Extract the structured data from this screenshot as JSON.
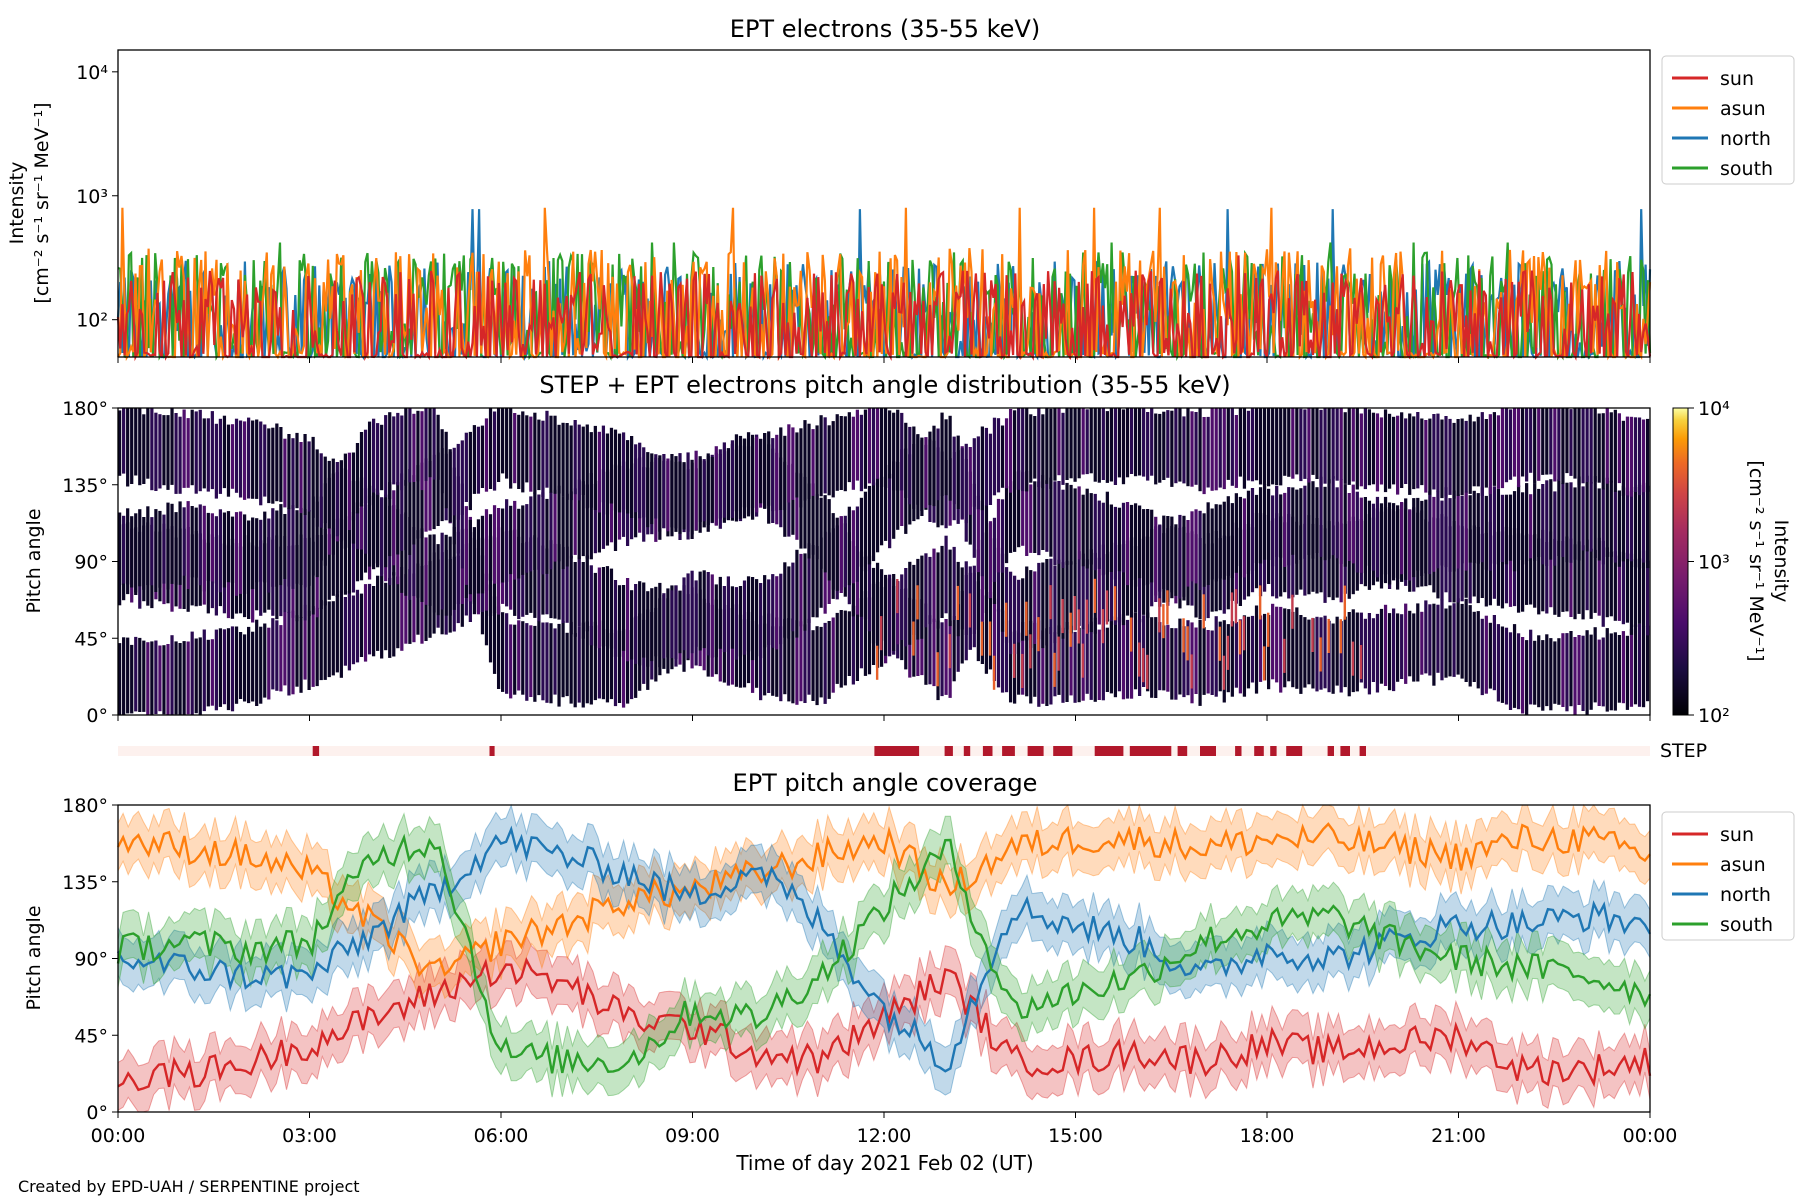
{
  "footer": "Created by EPD-UAH / SERPENTINE project",
  "xlabel": "Time of day 2021 Feb 02 (UT)",
  "xticks": [
    "00:00",
    "03:00",
    "06:00",
    "09:00",
    "12:00",
    "15:00",
    "18:00",
    "21:00",
    "00:00"
  ],
  "chart_data": [
    {
      "type": "line",
      "title": "EPT electrons (35-55 keV)",
      "ylabel": "Intensity",
      "yunit": "[cm⁻² s⁻¹ sr⁻¹ MeV⁻¹]",
      "yscale": "log",
      "ylim": [
        50,
        15000
      ],
      "yticks": [
        {
          "value": 100,
          "label": "10²"
        },
        {
          "value": 1000,
          "label": "10³"
        },
        {
          "value": 10000,
          "label": "10⁴"
        }
      ],
      "xlim_hours": [
        0,
        24
      ],
      "legend": "outside-right",
      "series": [
        {
          "name": "sun",
          "color": "#d62728",
          "typical": [
            50,
            250
          ],
          "peak": 330
        },
        {
          "name": "asun",
          "color": "#ff7f0e",
          "typical": [
            50,
            380
          ],
          "peak": 800
        },
        {
          "name": "north",
          "color": "#1f77b4",
          "typical": [
            50,
            300
          ],
          "peak": 780
        },
        {
          "name": "south",
          "color": "#2ca02c",
          "typical": [
            50,
            350
          ],
          "peak": 420
        }
      ]
    },
    {
      "type": "heatmap",
      "title": "STEP + EPT electrons pitch angle distribution (35-55 keV)",
      "ylabel": "Pitch angle",
      "yticks": [
        "0°",
        "45°",
        "90°",
        "135°",
        "180°"
      ],
      "ylim": [
        0,
        180
      ],
      "colorbar": {
        "label": "Intensity",
        "unit": "[cm⁻² s⁻¹ sr⁻¹ MeV⁻¹]",
        "scale": "log",
        "range": [
          100,
          10000
        ],
        "ticks": [
          "10²",
          "10³",
          "10⁴"
        ],
        "colormap": "inferno"
      }
    },
    {
      "type": "bar",
      "label": "STEP",
      "segments_hours": [
        [
          3.05,
          3.15
        ],
        [
          5.82,
          5.9
        ],
        [
          11.85,
          12.55
        ],
        [
          12.95,
          13.08
        ],
        [
          13.25,
          13.35
        ],
        [
          13.55,
          13.7
        ],
        [
          13.85,
          14.05
        ],
        [
          14.25,
          14.5
        ],
        [
          14.65,
          14.95
        ],
        [
          15.3,
          15.75
        ],
        [
          15.85,
          16.5
        ],
        [
          16.6,
          16.75
        ],
        [
          16.95,
          17.2
        ],
        [
          17.5,
          17.6
        ],
        [
          17.8,
          17.95
        ],
        [
          18.05,
          18.15
        ],
        [
          18.3,
          18.55
        ],
        [
          18.95,
          19.05
        ],
        [
          19.15,
          19.3
        ],
        [
          19.45,
          19.55
        ]
      ],
      "color": "#b2182b",
      "background": "#fdf1ee"
    },
    {
      "type": "line",
      "title": "EPT pitch angle coverage",
      "ylabel": "Pitch angle",
      "yticks": [
        "0°",
        "45°",
        "90°",
        "135°",
        "180°"
      ],
      "ylim": [
        0,
        180
      ],
      "xlim_hours": [
        0,
        24
      ],
      "legend": "outside-right",
      "x_hours": [
        0,
        1,
        2,
        3,
        4,
        5,
        6,
        7,
        8,
        9,
        10,
        11,
        12,
        13,
        14,
        15,
        16,
        17,
        18,
        19,
        20,
        21,
        22,
        23,
        24
      ],
      "series": [
        {
          "name": "sun",
          "color": "#d62728",
          "values": [
            20,
            22,
            28,
            40,
            55,
            70,
            85,
            75,
            55,
            50,
            35,
            30,
            55,
            80,
            30,
            30,
            35,
            30,
            40,
            35,
            40,
            45,
            25,
            25,
            30
          ]
        },
        {
          "name": "asun",
          "color": "#ff7f0e",
          "values": [
            160,
            155,
            150,
            140,
            110,
            80,
            100,
            110,
            125,
            130,
            140,
            150,
            160,
            130,
            155,
            160,
            160,
            155,
            160,
            160,
            155,
            150,
            160,
            160,
            150
          ]
        },
        {
          "name": "north",
          "color": "#1f77b4",
          "values": [
            90,
            85,
            80,
            80,
            105,
            130,
            160,
            150,
            140,
            125,
            145,
            110,
            60,
            30,
            120,
            110,
            100,
            80,
            95,
            90,
            100,
            110,
            110,
            115,
            110
          ]
        },
        {
          "name": "south",
          "color": "#2ca02c",
          "values": [
            95,
            100,
            95,
            100,
            150,
            160,
            35,
            30,
            30,
            60,
            55,
            80,
            120,
            155,
            60,
            70,
            80,
            100,
            110,
            115,
            100,
            90,
            85,
            80,
            70
          ]
        }
      ]
    }
  ]
}
